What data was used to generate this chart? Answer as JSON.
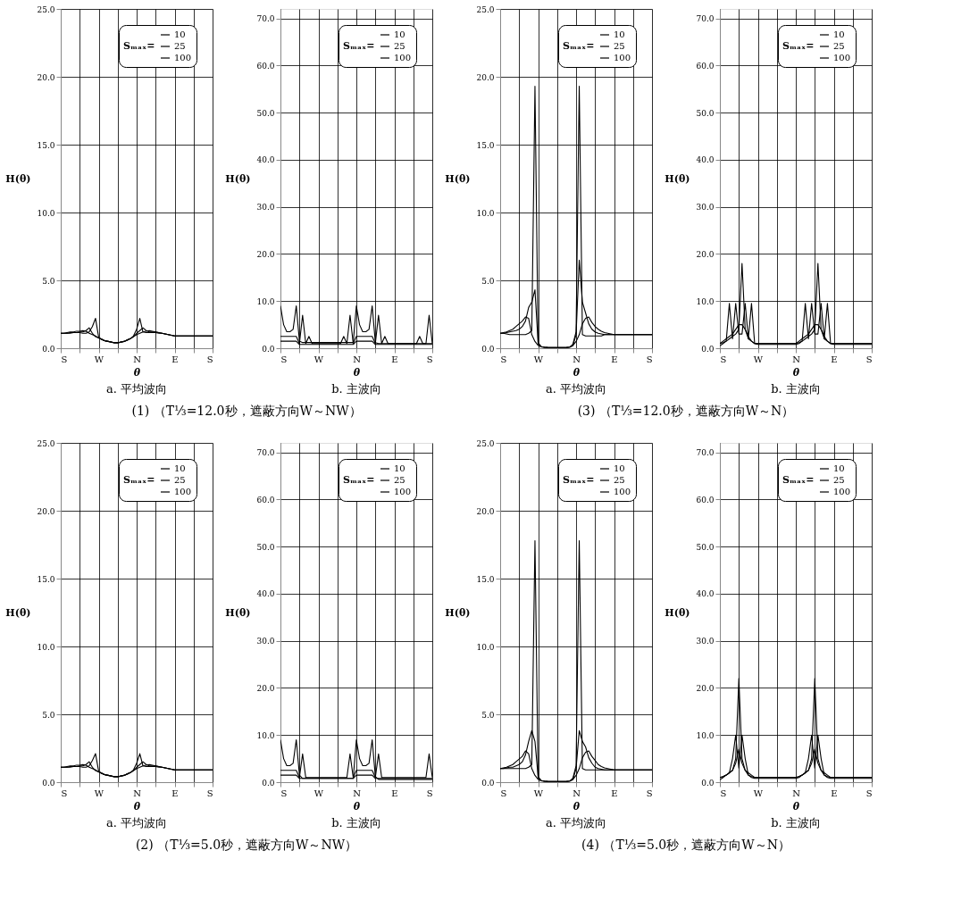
{
  "chart_data": [
    {
      "type": "line",
      "title": "a. 平均波向",
      "xlabel": "θ",
      "ylabel": "H(θ)",
      "legend_title": "Sₘₐₓ=",
      "legend": "top right",
      "grid": true,
      "annotations": [
        "(1) （T⅓=12.0秒，遮蔽方向W～NW）"
      ],
      "ylim": [
        0,
        25
      ],
      "categories": [
        "S",
        null,
        null,
        null,
        null,
        null,
        null,
        null,
        null,
        null,
        null,
        null,
        "W",
        null,
        null,
        null,
        null,
        null,
        null,
        null,
        null,
        null,
        null,
        null,
        "N",
        null,
        null,
        null,
        null,
        null,
        null,
        null,
        null,
        null,
        null,
        null,
        "E",
        null,
        null,
        null,
        null,
        null,
        null,
        null,
        null,
        null,
        null,
        null,
        "S"
      ],
      "yticks": [
        {
          "value": 0,
          "label": "0.0"
        },
        {
          "value": 5,
          "label": "5.0"
        },
        {
          "value": 10,
          "label": "10.0"
        },
        {
          "value": 15,
          "label": "15.0"
        },
        {
          "value": 20,
          "label": "20.0"
        },
        {
          "value": 25,
          "label": "25.0"
        }
      ],
      "series": [
        {
          "name": "10",
          "color": "#000000",
          "values": [
            1.1,
            1.1,
            1.15,
            1.2,
            1.2,
            1.25,
            1.25,
            1.3,
            1.25,
            1.1,
            1.0,
            0.9,
            0.75,
            0.65,
            0.55,
            0.5,
            0.45,
            0.4,
            0.4,
            0.45,
            0.5,
            0.6,
            0.7,
            0.85,
            1.0,
            1.1,
            1.2,
            1.25,
            1.3,
            1.25,
            1.2,
            1.15,
            1.1,
            1.05,
            1.0,
            0.95,
            0.9,
            0.9,
            0.9,
            0.9,
            0.9,
            0.9,
            0.9,
            0.9,
            0.9,
            0.9,
            0.9,
            0.9,
            0.9
          ]
        },
        {
          "name": "25",
          "color": "#000000",
          "values": [
            1.1,
            1.1,
            1.1,
            1.15,
            1.15,
            1.15,
            1.2,
            1.2,
            1.3,
            1.5,
            1.1,
            0.85,
            0.75,
            0.65,
            0.55,
            0.5,
            0.45,
            0.4,
            0.4,
            0.45,
            0.5,
            0.6,
            0.7,
            0.85,
            1.1,
            1.3,
            1.5,
            1.3,
            1.2,
            1.2,
            1.2,
            1.15,
            1.1,
            1.05,
            1.0,
            0.95,
            0.9,
            0.9,
            0.9,
            0.9,
            0.9,
            0.9,
            0.9,
            0.9,
            0.9,
            0.9,
            0.9,
            0.9,
            0.9
          ]
        },
        {
          "name": "100",
          "color": "#000000",
          "values": [
            1.1,
            1.1,
            1.1,
            1.1,
            1.15,
            1.15,
            1.15,
            1.1,
            1.1,
            1.2,
            1.6,
            2.2,
            0.8,
            0.65,
            0.55,
            0.5,
            0.45,
            0.4,
            0.4,
            0.45,
            0.5,
            0.6,
            0.7,
            0.9,
            1.4,
            2.2,
            1.2,
            1.15,
            1.15,
            1.15,
            1.15,
            1.1,
            1.1,
            1.05,
            1.0,
            0.95,
            0.9,
            0.9,
            0.9,
            0.9,
            0.9,
            0.9,
            0.9,
            0.9,
            0.9,
            0.9,
            0.9,
            0.9,
            0.9
          ]
        }
      ]
    },
    {
      "type": "line",
      "title": "b. 主波向",
      "xlabel": "θ",
      "ylabel": "H(θ)",
      "legend_title": "Sₘₐₓ=",
      "legend": "top right",
      "grid": true,
      "ylim": [
        0,
        72
      ],
      "categories": [
        "S",
        null,
        null,
        null,
        null,
        null,
        null,
        null,
        null,
        null,
        null,
        null,
        "W",
        null,
        null,
        null,
        null,
        null,
        null,
        null,
        null,
        null,
        null,
        null,
        "N",
        null,
        null,
        null,
        null,
        null,
        null,
        null,
        null,
        null,
        null,
        null,
        "E",
        null,
        null,
        null,
        null,
        null,
        null,
        null,
        null,
        null,
        null,
        null,
        "S"
      ],
      "yticks": [
        {
          "value": 0,
          "label": "0.0"
        },
        {
          "value": 10,
          "label": "10.0"
        },
        {
          "value": 20,
          "label": "20.0"
        },
        {
          "value": 30,
          "label": "30.0"
        },
        {
          "value": 40,
          "label": "40.0"
        },
        {
          "value": 50,
          "label": "50.0"
        },
        {
          "value": 60,
          "label": "60.0"
        },
        {
          "value": 70,
          "label": "70.0"
        }
      ],
      "series": [
        {
          "name": "10",
          "color": "#000000",
          "values": [
            9,
            5,
            3.5,
            3.5,
            4,
            9,
            1.5,
            1.2,
            1.2,
            1.2,
            1.2,
            1.2,
            1.2,
            1.2,
            1.2,
            1.2,
            1.2,
            1.2,
            1.2,
            1.2,
            1.2,
            1.2,
            1.2,
            1.2,
            9,
            5,
            3.5,
            3.5,
            4,
            9,
            1.2,
            1,
            1,
            1,
            1,
            1,
            1,
            1,
            1,
            1,
            1,
            1,
            1,
            1,
            1,
            1,
            1,
            1,
            1
          ]
        },
        {
          "name": "25",
          "color": "#000000",
          "values": [
            2.5,
            2.5,
            2.5,
            2.5,
            2.5,
            2.5,
            1,
            7,
            1,
            2.5,
            1,
            1,
            1,
            1,
            1,
            1,
            1,
            1,
            1,
            1,
            2.5,
            1,
            7,
            1,
            2.5,
            2.5,
            2.5,
            2.5,
            2.5,
            2.5,
            1,
            7,
            1,
            2.5,
            1,
            1,
            1,
            1,
            1,
            1,
            1,
            1,
            1,
            1,
            2.5,
            1,
            1,
            7,
            1
          ]
        },
        {
          "name": "100",
          "color": "#000000",
          "values": [
            1.5,
            1.5,
            1.5,
            1.5,
            1.5,
            1.5,
            0.8,
            0.8,
            0.8,
            0.8,
            0.8,
            0.8,
            0.8,
            0.8,
            0.8,
            0.8,
            0.8,
            0.8,
            0.8,
            0.8,
            0.8,
            0.8,
            0.8,
            0.8,
            1.5,
            1.5,
            1.5,
            1.5,
            1.5,
            1.5,
            0.8,
            0.8,
            0.8,
            0.8,
            0.8,
            0.8,
            0.8,
            0.8,
            0.8,
            0.8,
            0.8,
            0.8,
            0.8,
            0.8,
            0.8,
            0.8,
            0.8,
            0.8,
            0.8
          ]
        }
      ]
    },
    {
      "type": "line",
      "title": "a. 平均波向",
      "xlabel": "θ",
      "ylabel": "H(θ)",
      "legend_title": "Sₘₐₓ=",
      "legend": "top right",
      "grid": true,
      "annotations": [
        "(3) （T⅓=12.0秒，遮蔽方向W～N）"
      ],
      "ylim": [
        0,
        25
      ],
      "categories": [
        "S",
        null,
        null,
        null,
        null,
        null,
        null,
        null,
        null,
        null,
        null,
        null,
        "W",
        null,
        null,
        null,
        null,
        null,
        null,
        null,
        null,
        null,
        null,
        null,
        "N",
        null,
        null,
        null,
        null,
        null,
        null,
        null,
        null,
        null,
        null,
        null,
        "E",
        null,
        null,
        null,
        null,
        null,
        null,
        null,
        null,
        null,
        null,
        null,
        "S"
      ],
      "yticks": [
        {
          "value": 0,
          "label": "0.0"
        },
        {
          "value": 5,
          "label": "5.0"
        },
        {
          "value": 10,
          "label": "10.0"
        },
        {
          "value": 15,
          "label": "15.0"
        },
        {
          "value": 20,
          "label": "20.0"
        },
        {
          "value": 25,
          "label": "25.0"
        }
      ],
      "series": [
        {
          "name": "10",
          "color": "#000000",
          "values": [
            1.1,
            1.15,
            1.2,
            1.3,
            1.4,
            1.6,
            1.8,
            2.0,
            2.3,
            2.2,
            1.0,
            0.5,
            0.2,
            0.12,
            0.08,
            0.06,
            0.05,
            0.05,
            0.05,
            0.05,
            0.05,
            0.06,
            0.08,
            0.2,
            0.5,
            1.0,
            1.8,
            2.2,
            2.3,
            1.9,
            1.6,
            1.4,
            1.25,
            1.15,
            1.1,
            1.05,
            1.0,
            1.0,
            1.0,
            1.0,
            1.0,
            1.0,
            1.0,
            1.0,
            1.0,
            1.0,
            1.0,
            1.0,
            1.0
          ]
        },
        {
          "name": "25",
          "color": "#000000",
          "values": [
            1.1,
            1.1,
            1.15,
            1.2,
            1.25,
            1.3,
            1.4,
            1.6,
            2.0,
            3.0,
            3.4,
            4.3,
            0.4,
            0.12,
            0.08,
            0.06,
            0.05,
            0.05,
            0.05,
            0.05,
            0.05,
            0.06,
            0.08,
            0.2,
            1.0,
            6.5,
            3.4,
            2.6,
            1.8,
            1.4,
            1.2,
            1.1,
            1.05,
            1.0,
            1.0,
            1.0,
            1.0,
            1.0,
            1.0,
            1.0,
            1.0,
            1.0,
            1.0,
            1.0,
            1.0,
            1.0,
            1.0,
            1.0,
            1.0
          ]
        },
        {
          "name": "100",
          "color": "#000000",
          "values": [
            1.1,
            1.1,
            1.05,
            1.0,
            1.0,
            1.0,
            1.0,
            1.0,
            1.0,
            1.1,
            1.3,
            19.3,
            0.3,
            0.1,
            0.05,
            0.05,
            0.05,
            0.05,
            0.05,
            0.05,
            0.05,
            0.05,
            0.08,
            0.3,
            1.2,
            19.3,
            1.0,
            0.9,
            0.9,
            0.9,
            0.9,
            0.9,
            0.9,
            1.0,
            1.0,
            1.0,
            1.0,
            1.0,
            1.0,
            1.0,
            1.0,
            1.0,
            1.0,
            1.0,
            1.0,
            1.0,
            1.0,
            1.0,
            1.0
          ]
        }
      ]
    },
    {
      "type": "line",
      "title": "b. 主波向",
      "xlabel": "θ",
      "ylabel": "H(θ)",
      "legend_title": "Sₘₐₓ=",
      "legend": "top right",
      "grid": true,
      "ylim": [
        0,
        72
      ],
      "categories": [
        "S",
        null,
        null,
        null,
        null,
        null,
        null,
        null,
        null,
        null,
        null,
        null,
        "W",
        null,
        null,
        null,
        null,
        null,
        null,
        null,
        null,
        null,
        null,
        null,
        "N",
        null,
        null,
        null,
        null,
        null,
        null,
        null,
        null,
        null,
        null,
        null,
        "E",
        null,
        null,
        null,
        null,
        null,
        null,
        null,
        null,
        null,
        null,
        null,
        "S"
      ],
      "yticks": [
        {
          "value": 0,
          "label": "0.0"
        },
        {
          "value": 10,
          "label": "10.0"
        },
        {
          "value": 20,
          "label": "20.0"
        },
        {
          "value": 30,
          "label": "30.0"
        },
        {
          "value": 40,
          "label": "40.0"
        },
        {
          "value": 50,
          "label": "50.0"
        },
        {
          "value": 60,
          "label": "60.0"
        },
        {
          "value": 70,
          "label": "70.0"
        }
      ],
      "series": [
        {
          "name": "10",
          "color": "#000000",
          "values": [
            1,
            1.5,
            2,
            2.5,
            3,
            4,
            5,
            5,
            4,
            2.5,
            1.5,
            1,
            1,
            1,
            1,
            1,
            1,
            1,
            1,
            1,
            1,
            1,
            1,
            1,
            1,
            1.5,
            2,
            2.5,
            3,
            4,
            5,
            5,
            4,
            2.5,
            1.5,
            1,
            1,
            1,
            1,
            1,
            1,
            1,
            1,
            1,
            1,
            1,
            1,
            1,
            1
          ]
        },
        {
          "name": "25",
          "color": "#000000",
          "values": [
            0.5,
            1,
            1.5,
            9.5,
            2,
            9.5,
            3,
            3,
            9.5,
            2,
            9.5,
            1,
            0.8,
            0.8,
            0.8,
            0.8,
            0.8,
            0.8,
            0.8,
            0.8,
            0.8,
            0.8,
            0.8,
            0.8,
            0.8,
            1,
            1.5,
            9.5,
            2,
            9.5,
            3,
            3,
            9.5,
            2,
            9.5,
            1,
            0.8,
            0.8,
            0.8,
            0.8,
            0.8,
            0.8,
            0.8,
            0.8,
            0.8,
            0.8,
            0.8,
            0.8,
            0.8
          ]
        },
        {
          "name": "100",
          "color": "#000000",
          "values": [
            1,
            1.2,
            1.5,
            2,
            2.5,
            3,
            4,
            18,
            4,
            2,
            1.5,
            1,
            1,
            1,
            1,
            1,
            1,
            1,
            1,
            1,
            1,
            1,
            1,
            1,
            1,
            1.2,
            1.5,
            2,
            2.5,
            3,
            4,
            18,
            4,
            2,
            1.5,
            1,
            1,
            1,
            1,
            1,
            1,
            1,
            1,
            1,
            1,
            1,
            1,
            1,
            1
          ]
        }
      ]
    },
    {
      "type": "line",
      "title": "a. 平均波向",
      "xlabel": "θ",
      "ylabel": "H(θ)",
      "legend_title": "Sₘₐₓ=",
      "legend": "top right",
      "grid": true,
      "annotations": [
        "(2) （T⅓=5.0秒，遮蔽方向W～NW）"
      ],
      "ylim": [
        0,
        25
      ],
      "categories": [
        "S",
        null,
        null,
        null,
        null,
        null,
        null,
        null,
        null,
        null,
        null,
        null,
        "W",
        null,
        null,
        null,
        null,
        null,
        null,
        null,
        null,
        null,
        null,
        null,
        "N",
        null,
        null,
        null,
        null,
        null,
        null,
        null,
        null,
        null,
        null,
        null,
        "E",
        null,
        null,
        null,
        null,
        null,
        null,
        null,
        null,
        null,
        null,
        null,
        "S"
      ],
      "yticks": [
        {
          "value": 0,
          "label": "0.0"
        },
        {
          "value": 5,
          "label": "5.0"
        },
        {
          "value": 10,
          "label": "10.0"
        },
        {
          "value": 15,
          "label": "15.0"
        },
        {
          "value": 20,
          "label": "20.0"
        },
        {
          "value": 25,
          "label": "25.0"
        }
      ],
      "series": [
        {
          "name": "10",
          "color": "#000000",
          "values": [
            1.1,
            1.1,
            1.15,
            1.2,
            1.2,
            1.25,
            1.25,
            1.3,
            1.25,
            1.1,
            1.0,
            0.9,
            0.75,
            0.65,
            0.55,
            0.5,
            0.45,
            0.4,
            0.4,
            0.45,
            0.5,
            0.6,
            0.7,
            0.85,
            1.0,
            1.1,
            1.2,
            1.25,
            1.3,
            1.25,
            1.2,
            1.15,
            1.1,
            1.05,
            1.0,
            0.95,
            0.9,
            0.9,
            0.9,
            0.9,
            0.9,
            0.9,
            0.9,
            0.9,
            0.9,
            0.9,
            0.9,
            0.9,
            0.9
          ]
        },
        {
          "name": "25",
          "color": "#000000",
          "values": [
            1.1,
            1.1,
            1.1,
            1.15,
            1.15,
            1.15,
            1.2,
            1.2,
            1.3,
            1.5,
            1.1,
            0.85,
            0.75,
            0.65,
            0.55,
            0.5,
            0.45,
            0.4,
            0.4,
            0.45,
            0.5,
            0.6,
            0.7,
            0.85,
            1.1,
            1.3,
            1.5,
            1.3,
            1.2,
            1.2,
            1.2,
            1.15,
            1.1,
            1.05,
            1.0,
            0.95,
            0.9,
            0.9,
            0.9,
            0.9,
            0.9,
            0.9,
            0.9,
            0.9,
            0.9,
            0.9,
            0.9,
            0.9,
            0.9
          ]
        },
        {
          "name": "100",
          "color": "#000000",
          "values": [
            1.1,
            1.1,
            1.1,
            1.1,
            1.15,
            1.15,
            1.15,
            1.1,
            1.1,
            1.2,
            1.6,
            2.1,
            0.8,
            0.65,
            0.55,
            0.5,
            0.45,
            0.4,
            0.4,
            0.45,
            0.5,
            0.6,
            0.7,
            0.9,
            1.4,
            2.1,
            1.2,
            1.15,
            1.15,
            1.15,
            1.15,
            1.1,
            1.1,
            1.05,
            1.0,
            0.95,
            0.9,
            0.9,
            0.9,
            0.9,
            0.9,
            0.9,
            0.9,
            0.9,
            0.9,
            0.9,
            0.9,
            0.9,
            0.9
          ]
        }
      ]
    },
    {
      "type": "line",
      "title": "b. 主波向",
      "xlabel": "θ",
      "ylabel": "H(θ)",
      "legend_title": "Sₘₐₓ=",
      "legend": "top right",
      "grid": true,
      "ylim": [
        0,
        72
      ],
      "categories": [
        "S",
        null,
        null,
        null,
        null,
        null,
        null,
        null,
        null,
        null,
        null,
        null,
        "W",
        null,
        null,
        null,
        null,
        null,
        null,
        null,
        null,
        null,
        null,
        null,
        "N",
        null,
        null,
        null,
        null,
        null,
        null,
        null,
        null,
        null,
        null,
        null,
        "E",
        null,
        null,
        null,
        null,
        null,
        null,
        null,
        null,
        null,
        null,
        null,
        "S"
      ],
      "yticks": [
        {
          "value": 0,
          "label": "0.0"
        },
        {
          "value": 10,
          "label": "10.0"
        },
        {
          "value": 20,
          "label": "20.0"
        },
        {
          "value": 30,
          "label": "30.0"
        },
        {
          "value": 40,
          "label": "40.0"
        },
        {
          "value": 50,
          "label": "50.0"
        },
        {
          "value": 60,
          "label": "60.0"
        },
        {
          "value": 70,
          "label": "70.0"
        }
      ],
      "series": [
        {
          "name": "10",
          "color": "#000000",
          "values": [
            9,
            5,
            3.5,
            3.5,
            4,
            9,
            1.5,
            0.8,
            0.8,
            0.8,
            0.8,
            0.8,
            0.8,
            0.8,
            0.8,
            0.8,
            0.8,
            0.8,
            0.8,
            0.8,
            0.8,
            0.8,
            0.8,
            0.8,
            9,
            5,
            3.5,
            3.5,
            4,
            9,
            1.2,
            0.6,
            0.6,
            0.6,
            0.6,
            0.6,
            0.6,
            0.6,
            0.6,
            0.6,
            0.6,
            0.6,
            0.6,
            0.6,
            0.6,
            0.6,
            0.6,
            0.6,
            0.6
          ]
        },
        {
          "name": "25",
          "color": "#000000",
          "values": [
            2.5,
            2.5,
            2.5,
            2.5,
            2.5,
            2.5,
            1,
            6,
            1,
            1,
            1,
            1,
            1,
            1,
            1,
            1,
            1,
            1,
            1,
            1,
            1,
            1,
            6,
            1,
            2.5,
            2.5,
            2.5,
            2.5,
            2.5,
            2.5,
            1,
            6,
            1,
            1,
            1,
            1,
            1,
            1,
            1,
            1,
            1,
            1,
            1,
            1,
            1,
            1,
            1,
            6,
            1
          ]
        },
        {
          "name": "100",
          "color": "#000000",
          "values": [
            1.5,
            1.5,
            1.5,
            1.5,
            1.5,
            1.5,
            0.8,
            0.8,
            0.8,
            0.8,
            0.8,
            0.8,
            0.8,
            0.8,
            0.8,
            0.8,
            0.8,
            0.8,
            0.8,
            0.8,
            0.8,
            0.8,
            0.8,
            0.8,
            1.5,
            1.5,
            1.5,
            1.5,
            1.5,
            1.5,
            0.8,
            0.8,
            0.8,
            0.8,
            0.8,
            0.8,
            0.8,
            0.8,
            0.8,
            0.8,
            0.8,
            0.8,
            0.8,
            0.8,
            0.8,
            0.8,
            0.8,
            0.8,
            0.8
          ]
        }
      ]
    },
    {
      "type": "line",
      "title": "a. 平均波向",
      "xlabel": "θ",
      "ylabel": "H(θ)",
      "legend_title": "Sₘₐₓ=",
      "legend": "top right",
      "grid": true,
      "annotations": [
        "(4) （T⅓=5.0秒，遮蔽方向W～N）"
      ],
      "ylim": [
        0,
        25
      ],
      "categories": [
        "S",
        null,
        null,
        null,
        null,
        null,
        null,
        null,
        null,
        null,
        null,
        null,
        "W",
        null,
        null,
        null,
        null,
        null,
        null,
        null,
        null,
        null,
        null,
        null,
        "N",
        null,
        null,
        null,
        null,
        null,
        null,
        null,
        null,
        null,
        null,
        null,
        "E",
        null,
        null,
        null,
        null,
        null,
        null,
        null,
        null,
        null,
        null,
        null,
        "S"
      ],
      "yticks": [
        {
          "value": 0,
          "label": "0.0"
        },
        {
          "value": 5,
          "label": "5.0"
        },
        {
          "value": 10,
          "label": "10.0"
        },
        {
          "value": 15,
          "label": "15.0"
        },
        {
          "value": 20,
          "label": "20.0"
        },
        {
          "value": 25,
          "label": "25.0"
        }
      ],
      "series": [
        {
          "name": "10",
          "color": "#000000",
          "values": [
            1.0,
            1.05,
            1.1,
            1.2,
            1.3,
            1.5,
            1.7,
            1.9,
            2.3,
            2.1,
            1.0,
            0.5,
            0.2,
            0.12,
            0.08,
            0.06,
            0.05,
            0.05,
            0.05,
            0.05,
            0.05,
            0.06,
            0.08,
            0.2,
            0.5,
            1.0,
            1.8,
            2.2,
            2.3,
            1.9,
            1.6,
            1.3,
            1.15,
            1.05,
            1.0,
            0.95,
            0.9,
            0.9,
            0.9,
            0.9,
            0.9,
            0.9,
            0.9,
            0.9,
            0.9,
            0.9,
            0.9,
            0.9,
            0.9
          ]
        },
        {
          "name": "25",
          "color": "#000000",
          "values": [
            1.0,
            1.0,
            1.05,
            1.1,
            1.1,
            1.2,
            1.3,
            1.5,
            2.0,
            3.0,
            3.8,
            3.0,
            0.4,
            0.12,
            0.08,
            0.06,
            0.05,
            0.05,
            0.05,
            0.05,
            0.05,
            0.06,
            0.08,
            0.2,
            1.0,
            3.8,
            3.0,
            2.6,
            1.8,
            1.4,
            1.1,
            1.0,
            0.95,
            0.9,
            0.9,
            0.9,
            0.9,
            0.9,
            0.9,
            0.9,
            0.9,
            0.9,
            0.9,
            0.9,
            0.9,
            0.9,
            0.9,
            0.9,
            0.9
          ]
        },
        {
          "name": "100",
          "color": "#000000",
          "values": [
            1.0,
            1.0,
            1.0,
            1.0,
            1.0,
            1.0,
            1.0,
            1.0,
            1.0,
            1.1,
            1.3,
            17.8,
            0.3,
            0.1,
            0.05,
            0.05,
            0.05,
            0.05,
            0.05,
            0.05,
            0.05,
            0.05,
            0.08,
            0.3,
            1.2,
            17.8,
            1.0,
            0.9,
            0.9,
            0.9,
            0.9,
            0.9,
            0.9,
            0.9,
            0.9,
            0.9,
            0.9,
            0.9,
            0.9,
            0.9,
            0.9,
            0.9,
            0.9,
            0.9,
            0.9,
            0.9,
            0.9,
            0.9,
            0.9
          ]
        }
      ]
    },
    {
      "type": "line",
      "title": "b. 主波向",
      "xlabel": "θ",
      "ylabel": "H(θ)",
      "legend_title": "Sₘₐₓ=",
      "legend": "top right",
      "grid": true,
      "ylim": [
        0,
        72
      ],
      "categories": [
        "S",
        null,
        null,
        null,
        null,
        null,
        null,
        null,
        null,
        null,
        null,
        null,
        "W",
        null,
        null,
        null,
        null,
        null,
        null,
        null,
        null,
        null,
        null,
        null,
        "N",
        null,
        null,
        null,
        null,
        null,
        null,
        null,
        null,
        null,
        null,
        null,
        "E",
        null,
        null,
        null,
        null,
        null,
        null,
        null,
        null,
        null,
        null,
        null,
        "S"
      ],
      "yticks": [
        {
          "value": 0,
          "label": "0.0"
        },
        {
          "value": 10,
          "label": "10.0"
        },
        {
          "value": 20,
          "label": "20.0"
        },
        {
          "value": 30,
          "label": "30.0"
        },
        {
          "value": 40,
          "label": "40.0"
        },
        {
          "value": 50,
          "label": "50.0"
        },
        {
          "value": 60,
          "label": "60.0"
        },
        {
          "value": 70,
          "label": "70.0"
        }
      ],
      "series": [
        {
          "name": "10",
          "color": "#000000",
          "values": [
            1,
            1.2,
            1.5,
            2,
            2.5,
            4,
            7,
            4,
            2.5,
            1.5,
            1.2,
            1,
            1,
            1,
            1,
            1,
            1,
            1,
            1,
            1,
            1,
            1,
            1,
            1,
            1,
            1.2,
            1.5,
            2,
            2.5,
            4,
            7,
            4,
            2.5,
            1.5,
            1.2,
            1,
            1,
            1,
            1,
            1,
            1,
            1,
            1,
            1,
            1,
            1,
            1,
            1,
            1
          ]
        },
        {
          "name": "25",
          "color": "#000000",
          "values": [
            0.5,
            1,
            1.5,
            2,
            5,
            10,
            3,
            10,
            5,
            1.5,
            1,
            0.8,
            0.8,
            0.8,
            0.8,
            0.8,
            0.8,
            0.8,
            0.8,
            0.8,
            0.8,
            0.8,
            0.8,
            0.8,
            0.8,
            1,
            1.5,
            2,
            5,
            10,
            3,
            10,
            5,
            1.5,
            1,
            0.8,
            0.8,
            0.8,
            0.8,
            0.8,
            0.8,
            0.8,
            0.8,
            0.8,
            0.8,
            0.8,
            0.8,
            0.8,
            0.8
          ]
        },
        {
          "name": "100",
          "color": "#000000",
          "values": [
            1,
            1.2,
            1.5,
            2,
            2.5,
            5,
            22,
            5,
            2.5,
            2,
            1.5,
            1,
            1,
            1,
            1,
            1,
            1,
            1,
            1,
            1,
            1,
            1,
            1,
            1,
            1,
            1.2,
            1.5,
            2,
            2.5,
            5,
            22,
            5,
            2.5,
            2,
            1.5,
            1,
            1,
            1,
            1,
            1,
            1,
            1,
            1,
            1,
            1,
            1,
            1,
            1,
            1
          ]
        }
      ]
    }
  ]
}
